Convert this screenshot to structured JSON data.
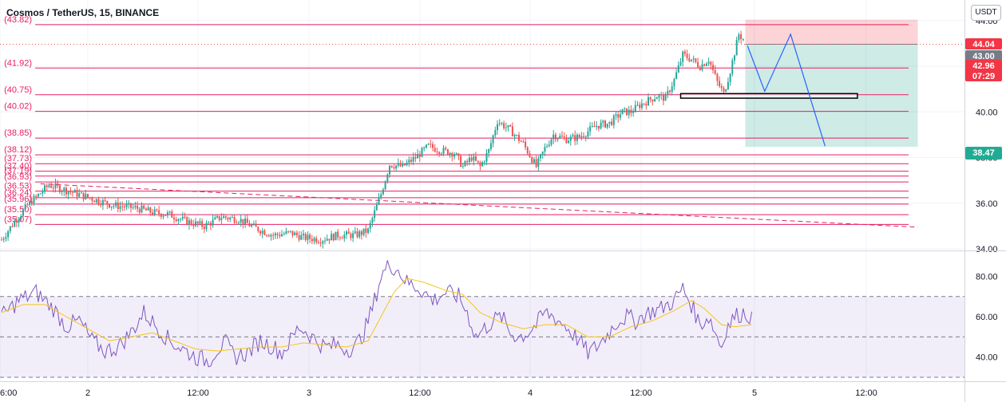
{
  "header": {
    "title": "Cosmos / TetherUS, 15, BINANCE",
    "currency": "USDT"
  },
  "colors": {
    "up": "#26a69a",
    "down": "#ef5350",
    "fib": "#e91e63",
    "rsi": "#7e57c2",
    "rsi_ma": "#f5c518",
    "projection": "#2962ff"
  },
  "price_tags": [
    {
      "value": "44.04",
      "color": "#f23645"
    },
    {
      "value": "43.00",
      "color": "#787b86"
    },
    {
      "value": "42.96",
      "value2": "07:29",
      "color": "#f23645"
    },
    {
      "value": "38.47",
      "color": "#22ab94"
    }
  ],
  "fib_labels": [
    "(43.82)",
    "(41.92)",
    "(40.75)",
    "(40.02)",
    "(38.85)",
    "(38.12)",
    "(37.73)",
    "(37.40)",
    "(37.19)",
    "(36.93)",
    "(36.53)",
    "(36.24)",
    "(35.96)",
    "(35.50)",
    "(35.07)"
  ],
  "chart_data": [
    {
      "type": "candlestick",
      "title": "Cosmos / TetherUS, 15, BINANCE",
      "x_tick_labels": [
        "6:00",
        "2",
        "12:00",
        "3",
        "12:00",
        "4",
        "12:00",
        "5",
        "12:00"
      ],
      "y_ticks": [
        "34.00",
        "36.00",
        "38.00",
        "40.00",
        "42.00",
        "44.00"
      ],
      "ylim": [
        34,
        44.9
      ],
      "close_path": [
        [
          0,
          34.4
        ],
        [
          6,
          35.2
        ],
        [
          12,
          35.9
        ],
        [
          22,
          36.8
        ],
        [
          32,
          36.5
        ],
        [
          42,
          36.2
        ],
        [
          52,
          35.9
        ],
        [
          62,
          35.8
        ],
        [
          70,
          35.6
        ],
        [
          78,
          35.5
        ],
        [
          86,
          35.2
        ],
        [
          94,
          35.0
        ],
        [
          102,
          35.4
        ],
        [
          110,
          35.3
        ],
        [
          118,
          34.9
        ],
        [
          126,
          34.6
        ],
        [
          134,
          34.7
        ],
        [
          140,
          34.5
        ],
        [
          148,
          34.4
        ],
        [
          156,
          34.6
        ],
        [
          164,
          34.6
        ],
        [
          170,
          34.8
        ],
        [
          176,
          36.4
        ],
        [
          180,
          37.7
        ],
        [
          186,
          37.6
        ],
        [
          192,
          38.0
        ],
        [
          198,
          38.5
        ],
        [
          204,
          38.3
        ],
        [
          210,
          38.2
        ],
        [
          214,
          37.6
        ],
        [
          218,
          38.0
        ],
        [
          222,
          37.6
        ],
        [
          226,
          38.3
        ],
        [
          230,
          39.6
        ],
        [
          236,
          39.2
        ],
        [
          242,
          38.6
        ],
        [
          248,
          37.6
        ],
        [
          252,
          38.4
        ],
        [
          256,
          39.0
        ],
        [
          262,
          38.8
        ],
        [
          268,
          38.9
        ],
        [
          276,
          39.4
        ],
        [
          282,
          39.5
        ],
        [
          288,
          40.0
        ],
        [
          292,
          40.0
        ],
        [
          296,
          40.3
        ],
        [
          300,
          40.5
        ],
        [
          304,
          40.7
        ],
        [
          308,
          40.6
        ],
        [
          312,
          41.4
        ],
        [
          316,
          42.5
        ],
        [
          320,
          42.3
        ],
        [
          324,
          42.0
        ],
        [
          328,
          42.3
        ],
        [
          332,
          41.3
        ],
        [
          335,
          40.8
        ],
        [
          338,
          41.8
        ],
        [
          340,
          42.6
        ],
        [
          342,
          43.4
        ],
        [
          344,
          43.2
        ]
      ],
      "wick_noise": 0.22,
      "fib_levels": [
        43.82,
        41.92,
        40.75,
        40.02,
        38.85,
        38.12,
        37.73,
        37.4,
        37.19,
        36.93,
        36.53,
        36.24,
        35.96,
        35.5,
        35.07
      ],
      "current_price": 42.96,
      "trendline": {
        "from": [
          18,
          36.85
        ],
        "to": [
          425,
          34.95
        ]
      },
      "position": {
        "entry": 42.96,
        "stop": 44.04,
        "target": 38.47,
        "from_bar": 345,
        "to_bar": 425
      },
      "support_box": {
        "from_bar": 315,
        "to_bar": 397,
        "low": 40.6,
        "high": 40.8
      },
      "projection": [
        [
          346,
          42.9
        ],
        [
          354,
          40.9
        ],
        [
          366,
          43.4
        ],
        [
          382,
          38.5
        ]
      ]
    },
    {
      "type": "line",
      "title": "RSI",
      "y_ticks": [
        "40.00",
        "60.00",
        "80.00"
      ],
      "ylim": [
        28,
        92
      ],
      "band": [
        30,
        70
      ],
      "midline": 50,
      "series": [
        {
          "values_path": [
            [
              0,
              60
            ],
            [
              8,
              68
            ],
            [
              16,
              72
            ],
            [
              24,
              64
            ],
            [
              30,
              55
            ],
            [
              36,
              58
            ],
            [
              42,
              48
            ],
            [
              48,
              43
            ],
            [
              54,
              45
            ],
            [
              60,
              52
            ],
            [
              66,
              62
            ],
            [
              72,
              55
            ],
            [
              78,
              48
            ],
            [
              84,
              44
            ],
            [
              90,
              40
            ],
            [
              96,
              38
            ],
            [
              100,
              44
            ],
            [
              104,
              47
            ],
            [
              108,
              40
            ],
            [
              114,
              42
            ],
            [
              120,
              48
            ],
            [
              126,
              45
            ],
            [
              130,
              42
            ],
            [
              134,
              48
            ],
            [
              138,
              55
            ],
            [
              142,
              52
            ],
            [
              146,
              48
            ],
            [
              150,
              45
            ],
            [
              156,
              46
            ],
            [
              160,
              44
            ],
            [
              164,
              45
            ],
            [
              168,
              52
            ],
            [
              172,
              64
            ],
            [
              176,
              80
            ],
            [
              180,
              86
            ],
            [
              184,
              83
            ],
            [
              188,
              77
            ],
            [
              194,
              74
            ],
            [
              200,
              68
            ],
            [
              206,
              72
            ],
            [
              212,
              70
            ],
            [
              216,
              62
            ],
            [
              220,
              50
            ],
            [
              224,
              54
            ],
            [
              228,
              58
            ],
            [
              232,
              60
            ],
            [
              236,
              52
            ],
            [
              240,
              50
            ],
            [
              244,
              52
            ],
            [
              248,
              56
            ],
            [
              252,
              62
            ],
            [
              256,
              60
            ],
            [
              262,
              55
            ],
            [
              268,
              48
            ],
            [
              272,
              42
            ],
            [
              276,
              45
            ],
            [
              280,
              50
            ],
            [
              286,
              58
            ],
            [
              290,
              60
            ],
            [
              294,
              58
            ],
            [
              300,
              62
            ],
            [
              306,
              64
            ],
            [
              312,
              68
            ],
            [
              316,
              74
            ],
            [
              320,
              66
            ],
            [
              324,
              56
            ],
            [
              328,
              60
            ],
            [
              332,
              50
            ],
            [
              334,
              45
            ],
            [
              336,
              54
            ],
            [
              340,
              60
            ],
            [
              344,
              62
            ],
            [
              348,
              60
            ]
          ]
        },
        {
          "values_path": [
            [
              0,
              62
            ],
            [
              10,
              66
            ],
            [
              20,
              66
            ],
            [
              30,
              60
            ],
            [
              40,
              54
            ],
            [
              50,
              48
            ],
            [
              60,
              50
            ],
            [
              70,
              52
            ],
            [
              80,
              48
            ],
            [
              90,
              44
            ],
            [
              100,
              43
            ],
            [
              110,
              44
            ],
            [
              120,
              45
            ],
            [
              130,
              45
            ],
            [
              140,
              47
            ],
            [
              150,
              46
            ],
            [
              160,
              45
            ],
            [
              170,
              48
            ],
            [
              176,
              60
            ],
            [
              182,
              72
            ],
            [
              188,
              79
            ],
            [
              196,
              77
            ],
            [
              206,
              73
            ],
            [
              214,
              71
            ],
            [
              222,
              62
            ],
            [
              232,
              57
            ],
            [
              242,
              54
            ],
            [
              252,
              56
            ],
            [
              262,
              56
            ],
            [
              272,
              50
            ],
            [
              282,
              50
            ],
            [
              292,
              55
            ],
            [
              302,
              58
            ],
            [
              312,
              63
            ],
            [
              320,
              68
            ],
            [
              326,
              64
            ],
            [
              334,
              56
            ],
            [
              340,
              55
            ],
            [
              348,
              56
            ]
          ]
        }
      ]
    }
  ]
}
